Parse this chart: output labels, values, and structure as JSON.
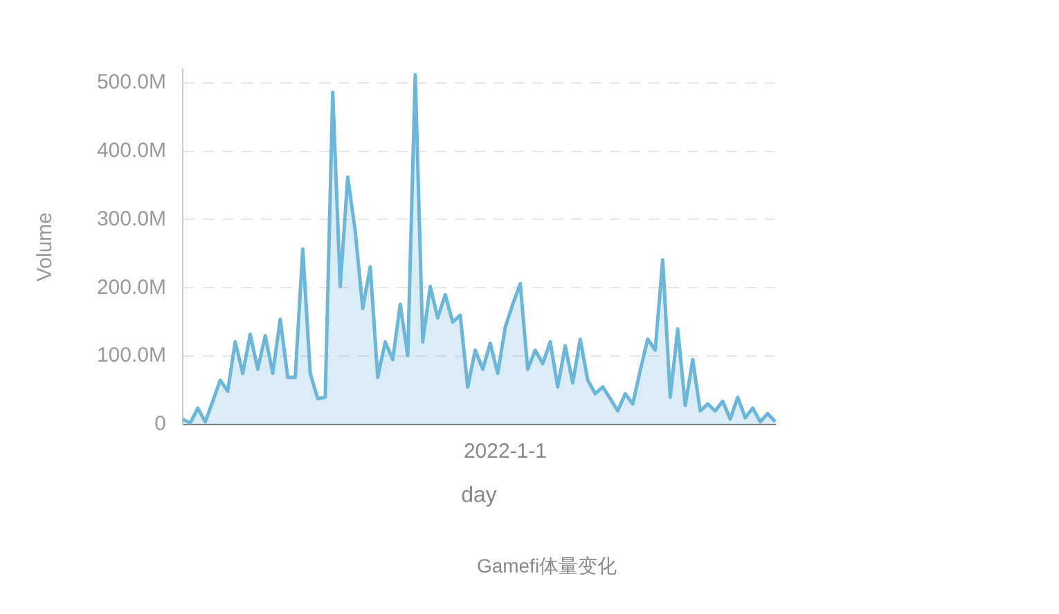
{
  "chart_data": {
    "type": "area",
    "xlabel": "day",
    "ylabel": "Volume",
    "annotations": [
      "Gamefi体量变化"
    ],
    "categories": [
      null,
      null,
      null,
      null,
      null,
      null,
      null,
      null,
      null,
      null,
      null,
      null,
      null,
      null,
      null,
      null,
      null,
      null,
      null,
      null,
      null,
      null,
      null,
      null,
      null,
      null,
      null,
      null,
      null,
      null,
      null,
      null,
      null,
      null,
      null,
      null,
      null,
      null,
      null,
      null,
      null,
      null,
      null,
      "2022-1-1",
      null,
      null,
      null,
      null,
      null,
      null,
      null,
      null,
      null,
      null,
      null,
      null,
      null,
      null,
      null,
      null,
      null,
      null,
      null,
      null,
      null,
      null,
      null,
      null,
      null,
      null,
      null,
      null,
      null,
      null,
      null,
      null,
      null,
      null,
      null,
      null
    ],
    "series": [
      {
        "color": "#6cb6da",
        "values": [
          8,
          2,
          24,
          4,
          34,
          65,
          49,
          121,
          75,
          132,
          81,
          130,
          75,
          154,
          69,
          69,
          257,
          75,
          38,
          40,
          486,
          202,
          362,
          283,
          170,
          231,
          69,
          121,
          95,
          176,
          101,
          512,
          121,
          202,
          156,
          190,
          150,
          160,
          55,
          109,
          81,
          119,
          75,
          142,
          176,
          206,
          81,
          109,
          89,
          121,
          55,
          115,
          61,
          125,
          65,
          45,
          55,
          38,
          20,
          45,
          30,
          79,
          125,
          109,
          241,
          40,
          140,
          28,
          95,
          20,
          30,
          20,
          34,
          8,
          40,
          10,
          24,
          4,
          16,
          4
        ]
      }
    ],
    "ylim": [
      0,
      520
    ],
    "yticks": [
      {
        "value": 0,
        "label": "0"
      },
      {
        "value": 100,
        "label": "100.0M"
      },
      {
        "value": 200,
        "label": "200.0M"
      },
      {
        "value": 300,
        "label": "300.0M"
      },
      {
        "value": 400,
        "label": "400.0M"
      },
      {
        "value": 500,
        "label": "500.0M"
      }
    ],
    "grid": "y",
    "legend": false,
    "marker": "none"
  }
}
